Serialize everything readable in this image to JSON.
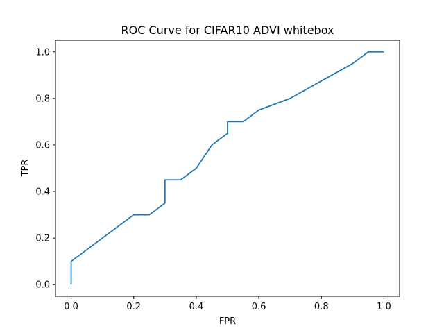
{
  "chart_data": {
    "type": "line",
    "title": "ROC Curve for CIFAR10 ADVI whitebox",
    "xlabel": "FPR",
    "ylabel": "TPR",
    "xlim": [
      -0.05,
      1.05
    ],
    "ylim": [
      -0.05,
      1.05
    ],
    "grid": false,
    "xticks": [
      0.0,
      0.2,
      0.4,
      0.6,
      0.8,
      1.0
    ],
    "yticks": [
      0.0,
      0.2,
      0.4,
      0.6,
      0.8,
      1.0
    ],
    "xtick_labels": [
      "0.0",
      "0.2",
      "0.4",
      "0.6",
      "0.8",
      "1.0"
    ],
    "ytick_labels": [
      "0.0",
      "0.2",
      "0.4",
      "0.6",
      "0.8",
      "1.0"
    ],
    "series": [
      {
        "color": "#1f77b4",
        "x": [
          0.0,
          0.0,
          0.2,
          0.25,
          0.3,
          0.3,
          0.35,
          0.4,
          0.45,
          0.5,
          0.5,
          0.55,
          0.6,
          0.7,
          0.8,
          0.9,
          0.95,
          1.0
        ],
        "y": [
          0.0,
          0.1,
          0.3,
          0.3,
          0.35,
          0.45,
          0.45,
          0.5,
          0.6,
          0.65,
          0.7,
          0.7,
          0.75,
          0.8,
          0.875,
          0.95,
          1.0,
          1.0
        ]
      }
    ]
  }
}
